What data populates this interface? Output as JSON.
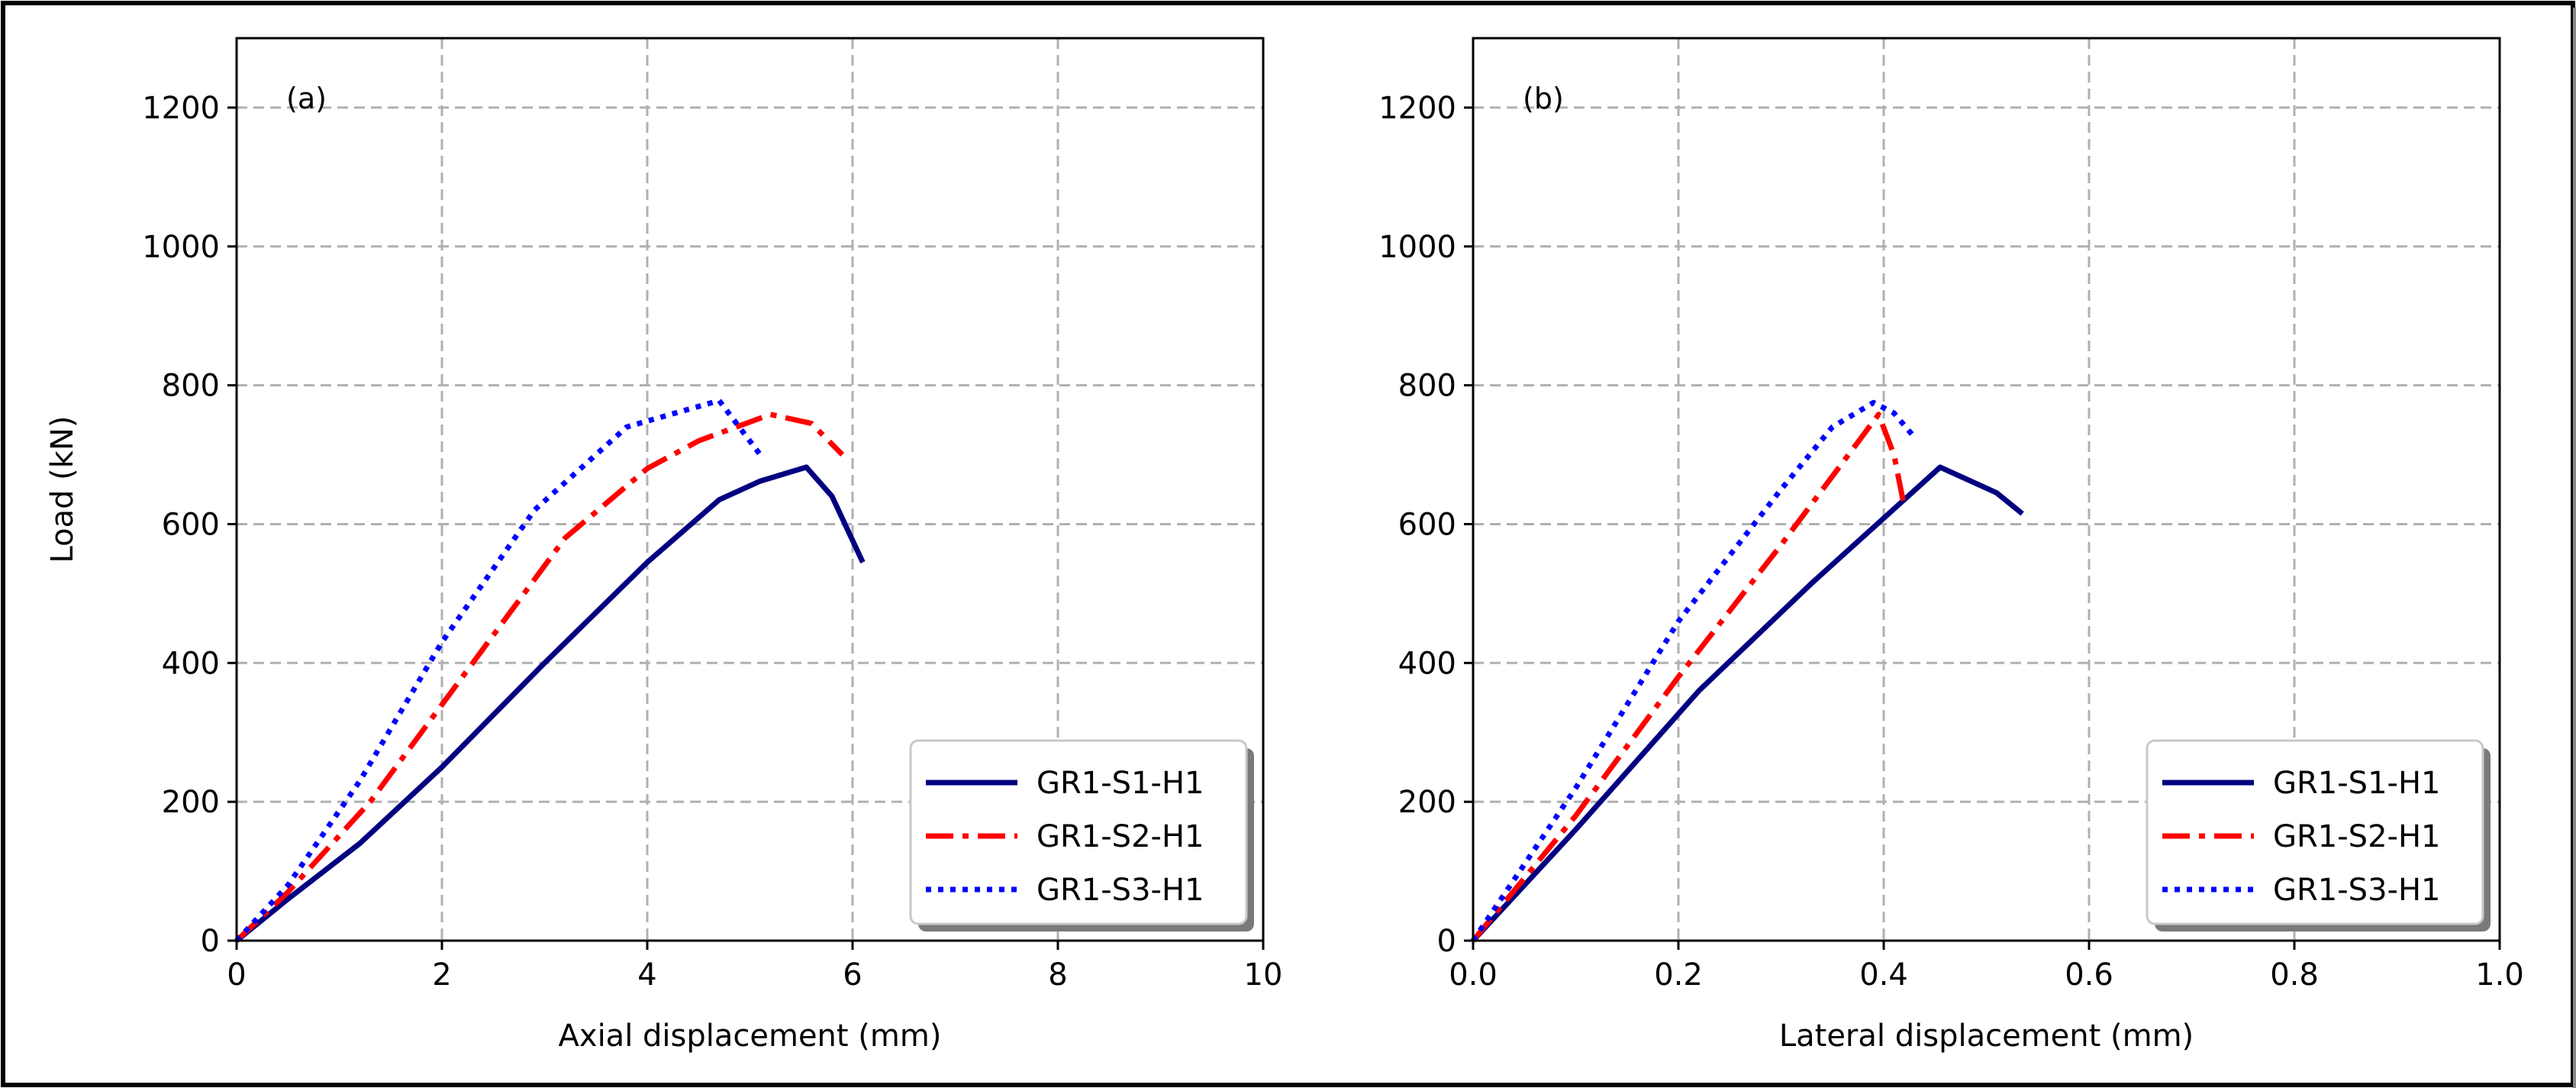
{
  "chart_data": [
    {
      "type": "line",
      "panel_label": "(a)",
      "xlabel": "Axial displacement (mm)",
      "ylabel": "Load (kN)",
      "xlim": [
        0,
        10
      ],
      "ylim": [
        0,
        1300
      ],
      "xticks": [
        "0",
        "2",
        "4",
        "6",
        "8",
        "10"
      ],
      "yticks": [
        "0",
        "200",
        "400",
        "600",
        "800",
        "1000",
        "1200"
      ],
      "grid": true,
      "legend_position": "lower-right",
      "series": [
        {
          "name": "GR1-S1-H1",
          "color": "#000080",
          "style": "solid",
          "points": [
            [
              0,
              0
            ],
            [
              0.5,
              60
            ],
            [
              1.2,
              140
            ],
            [
              2,
              250
            ],
            [
              3,
              400
            ],
            [
              4,
              545
            ],
            [
              4.7,
              635
            ],
            [
              5.1,
              662
            ],
            [
              5.55,
              682
            ],
            [
              5.8,
              640
            ],
            [
              6.1,
              545
            ]
          ]
        },
        {
          "name": "GR1-S2-H1",
          "color": "#ff0000",
          "style": "dashdot",
          "points": [
            [
              0,
              0
            ],
            [
              0.5,
              70
            ],
            [
              1.3,
              200
            ],
            [
              2,
              340
            ],
            [
              3.2,
              580
            ],
            [
              4,
              680
            ],
            [
              4.5,
              720
            ],
            [
              5.2,
              758
            ],
            [
              5.6,
              745
            ],
            [
              5.9,
              700
            ]
          ]
        },
        {
          "name": "GR1-S3-H1",
          "color": "#0000ff",
          "style": "dotted",
          "points": [
            [
              0,
              0
            ],
            [
              0.5,
              80
            ],
            [
              1.2,
              230
            ],
            [
              2,
              430
            ],
            [
              2.9,
              620
            ],
            [
              3.8,
              740
            ],
            [
              4.7,
              778
            ],
            [
              5.1,
              700
            ]
          ]
        }
      ]
    },
    {
      "type": "line",
      "panel_label": "(b)",
      "xlabel": "Lateral displacement (mm)",
      "ylabel": "",
      "xlim": [
        0,
        1.0
      ],
      "ylim": [
        0,
        1300
      ],
      "xticks": [
        "0.0",
        "0.2",
        "0.4",
        "0.6",
        "0.8",
        "1.0"
      ],
      "yticks": [
        "0",
        "200",
        "400",
        "600",
        "800",
        "1000",
        "1200"
      ],
      "grid": true,
      "legend_position": "lower-right",
      "series": [
        {
          "name": "GR1-S1-H1",
          "color": "#000080",
          "style": "solid",
          "points": [
            [
              0,
              0
            ],
            [
              0.1,
              160
            ],
            [
              0.22,
              360
            ],
            [
              0.33,
              515
            ],
            [
              0.455,
              682
            ],
            [
              0.51,
              645
            ],
            [
              0.535,
              615
            ]
          ]
        },
        {
          "name": "GR1-S2-H1",
          "color": "#ff0000",
          "style": "dashdot",
          "points": [
            [
              0,
              0
            ],
            [
              0.1,
              180
            ],
            [
              0.2,
              380
            ],
            [
              0.3,
              570
            ],
            [
              0.395,
              758
            ],
            [
              0.41,
              700
            ],
            [
              0.42,
              625
            ]
          ]
        },
        {
          "name": "GR1-S3-H1",
          "color": "#0000ff",
          "style": "dotted",
          "points": [
            [
              0,
              0
            ],
            [
              0.1,
              220
            ],
            [
              0.2,
              460
            ],
            [
              0.3,
              650
            ],
            [
              0.35,
              740
            ],
            [
              0.39,
              775
            ],
            [
              0.41,
              760
            ],
            [
              0.43,
              725
            ]
          ]
        }
      ]
    }
  ]
}
